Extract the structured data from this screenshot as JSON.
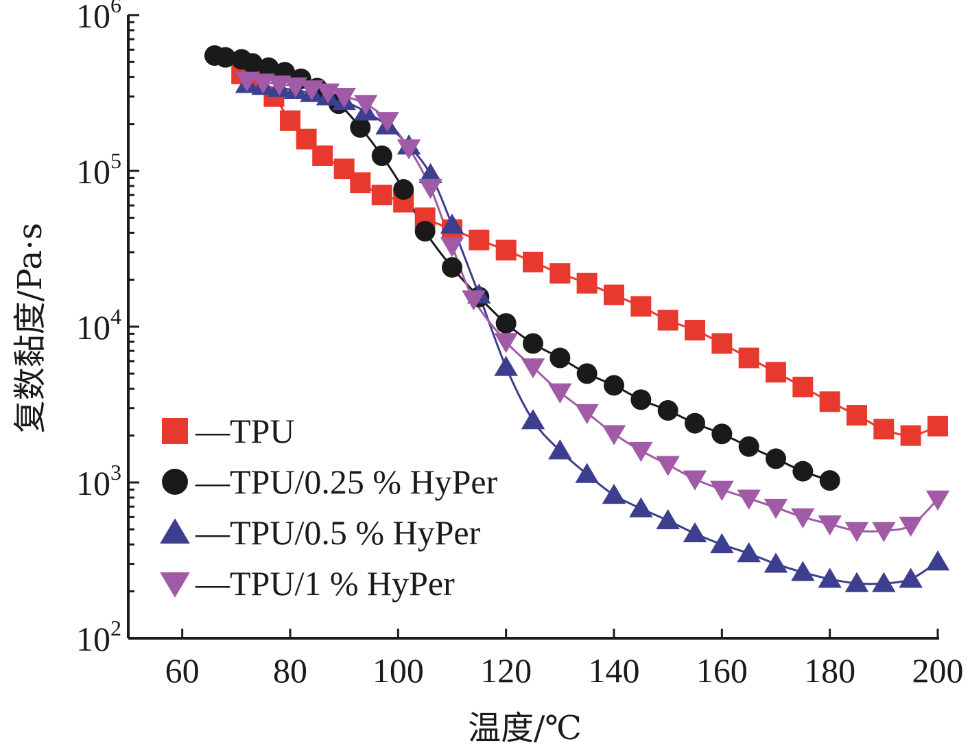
{
  "chart_data": {
    "type": "line",
    "xlabel": "温度/℃",
    "ylabel": "复数黏度/Pa·s",
    "xlim": [
      50,
      200
    ],
    "ylim": [
      100,
      1000000
    ],
    "yscale": "log",
    "xticks": [
      60,
      80,
      100,
      120,
      140,
      160,
      180,
      200
    ],
    "yticks": [
      {
        "value": 100,
        "base": "10",
        "exp": "2"
      },
      {
        "value": 1000,
        "base": "10",
        "exp": "3"
      },
      {
        "value": 10000,
        "base": "10",
        "exp": "4"
      },
      {
        "value": 100000,
        "base": "10",
        "exp": "5"
      },
      {
        "value": 1000000,
        "base": "10",
        "exp": "6"
      }
    ],
    "legend_position": "lower-left",
    "series": [
      {
        "name": "—TPU",
        "marker": "square",
        "color": "#e8392f",
        "x": [
          71,
          74,
          77,
          80,
          83,
          86,
          90,
          93,
          97,
          101,
          105,
          110,
          115,
          120,
          125,
          130,
          135,
          140,
          145,
          150,
          155,
          160,
          165,
          170,
          175,
          180,
          185,
          190,
          195,
          200
        ],
        "y": [
          420000,
          370000,
          300000,
          210000,
          160000,
          125000,
          103000,
          84000,
          70000,
          63000,
          50000,
          42000,
          36000,
          31000,
          26000,
          22000,
          19000,
          16000,
          13500,
          11000,
          9500,
          7800,
          6300,
          5100,
          4100,
          3300,
          2700,
          2200,
          2000,
          2300
        ]
      },
      {
        "name": "—TPU/0.25 % HyPer",
        "marker": "circle",
        "color": "#1a1a1a",
        "x": [
          66,
          68,
          71,
          73,
          76,
          79,
          82,
          85,
          89,
          93,
          97,
          101,
          105,
          110,
          115,
          120,
          125,
          130,
          135,
          140,
          145,
          150,
          155,
          160,
          165,
          170,
          175,
          180
        ],
        "y": [
          550000,
          535000,
          520000,
          490000,
          460000,
          430000,
          390000,
          340000,
          270000,
          190000,
          125000,
          76000,
          41000,
          24000,
          15500,
          10500,
          7800,
          6300,
          5000,
          4200,
          3400,
          2900,
          2400,
          2050,
          1700,
          1420,
          1180,
          1030
        ]
      },
      {
        "name": "—TPU/0.5 % HyPer",
        "marker": "triangle-up",
        "color": "#3c3e8e",
        "x": [
          72,
          75,
          78,
          81,
          84,
          87,
          90,
          94,
          98,
          102,
          106,
          110,
          115,
          120,
          125,
          130,
          135,
          140,
          145,
          150,
          155,
          160,
          165,
          170,
          175,
          180,
          185,
          190,
          195,
          200
        ],
        "y": [
          360000,
          350000,
          340000,
          330000,
          315000,
          300000,
          280000,
          240000,
          195000,
          145000,
          95000,
          45000,
          16000,
          5500,
          2500,
          1600,
          1130,
          830,
          680,
          570,
          470,
          400,
          350,
          300,
          265,
          240,
          225,
          225,
          240,
          310
        ]
      },
      {
        "name": "—TPU/1 % HyPer",
        "marker": "triangle-down",
        "color": "#a15aa6",
        "x": [
          72,
          75,
          78,
          81,
          84,
          87,
          90,
          94,
          98,
          102,
          106,
          110,
          114,
          120,
          125,
          130,
          135,
          140,
          145,
          150,
          155,
          160,
          165,
          170,
          175,
          180,
          185,
          190,
          195,
          200
        ],
        "y": [
          380000,
          370000,
          360000,
          350000,
          335000,
          320000,
          300000,
          270000,
          210000,
          140000,
          78000,
          33000,
          15000,
          8000,
          5500,
          3800,
          2800,
          2050,
          1600,
          1300,
          1050,
          900,
          790,
          690,
          600,
          540,
          490,
          490,
          530,
          780
        ]
      }
    ]
  }
}
